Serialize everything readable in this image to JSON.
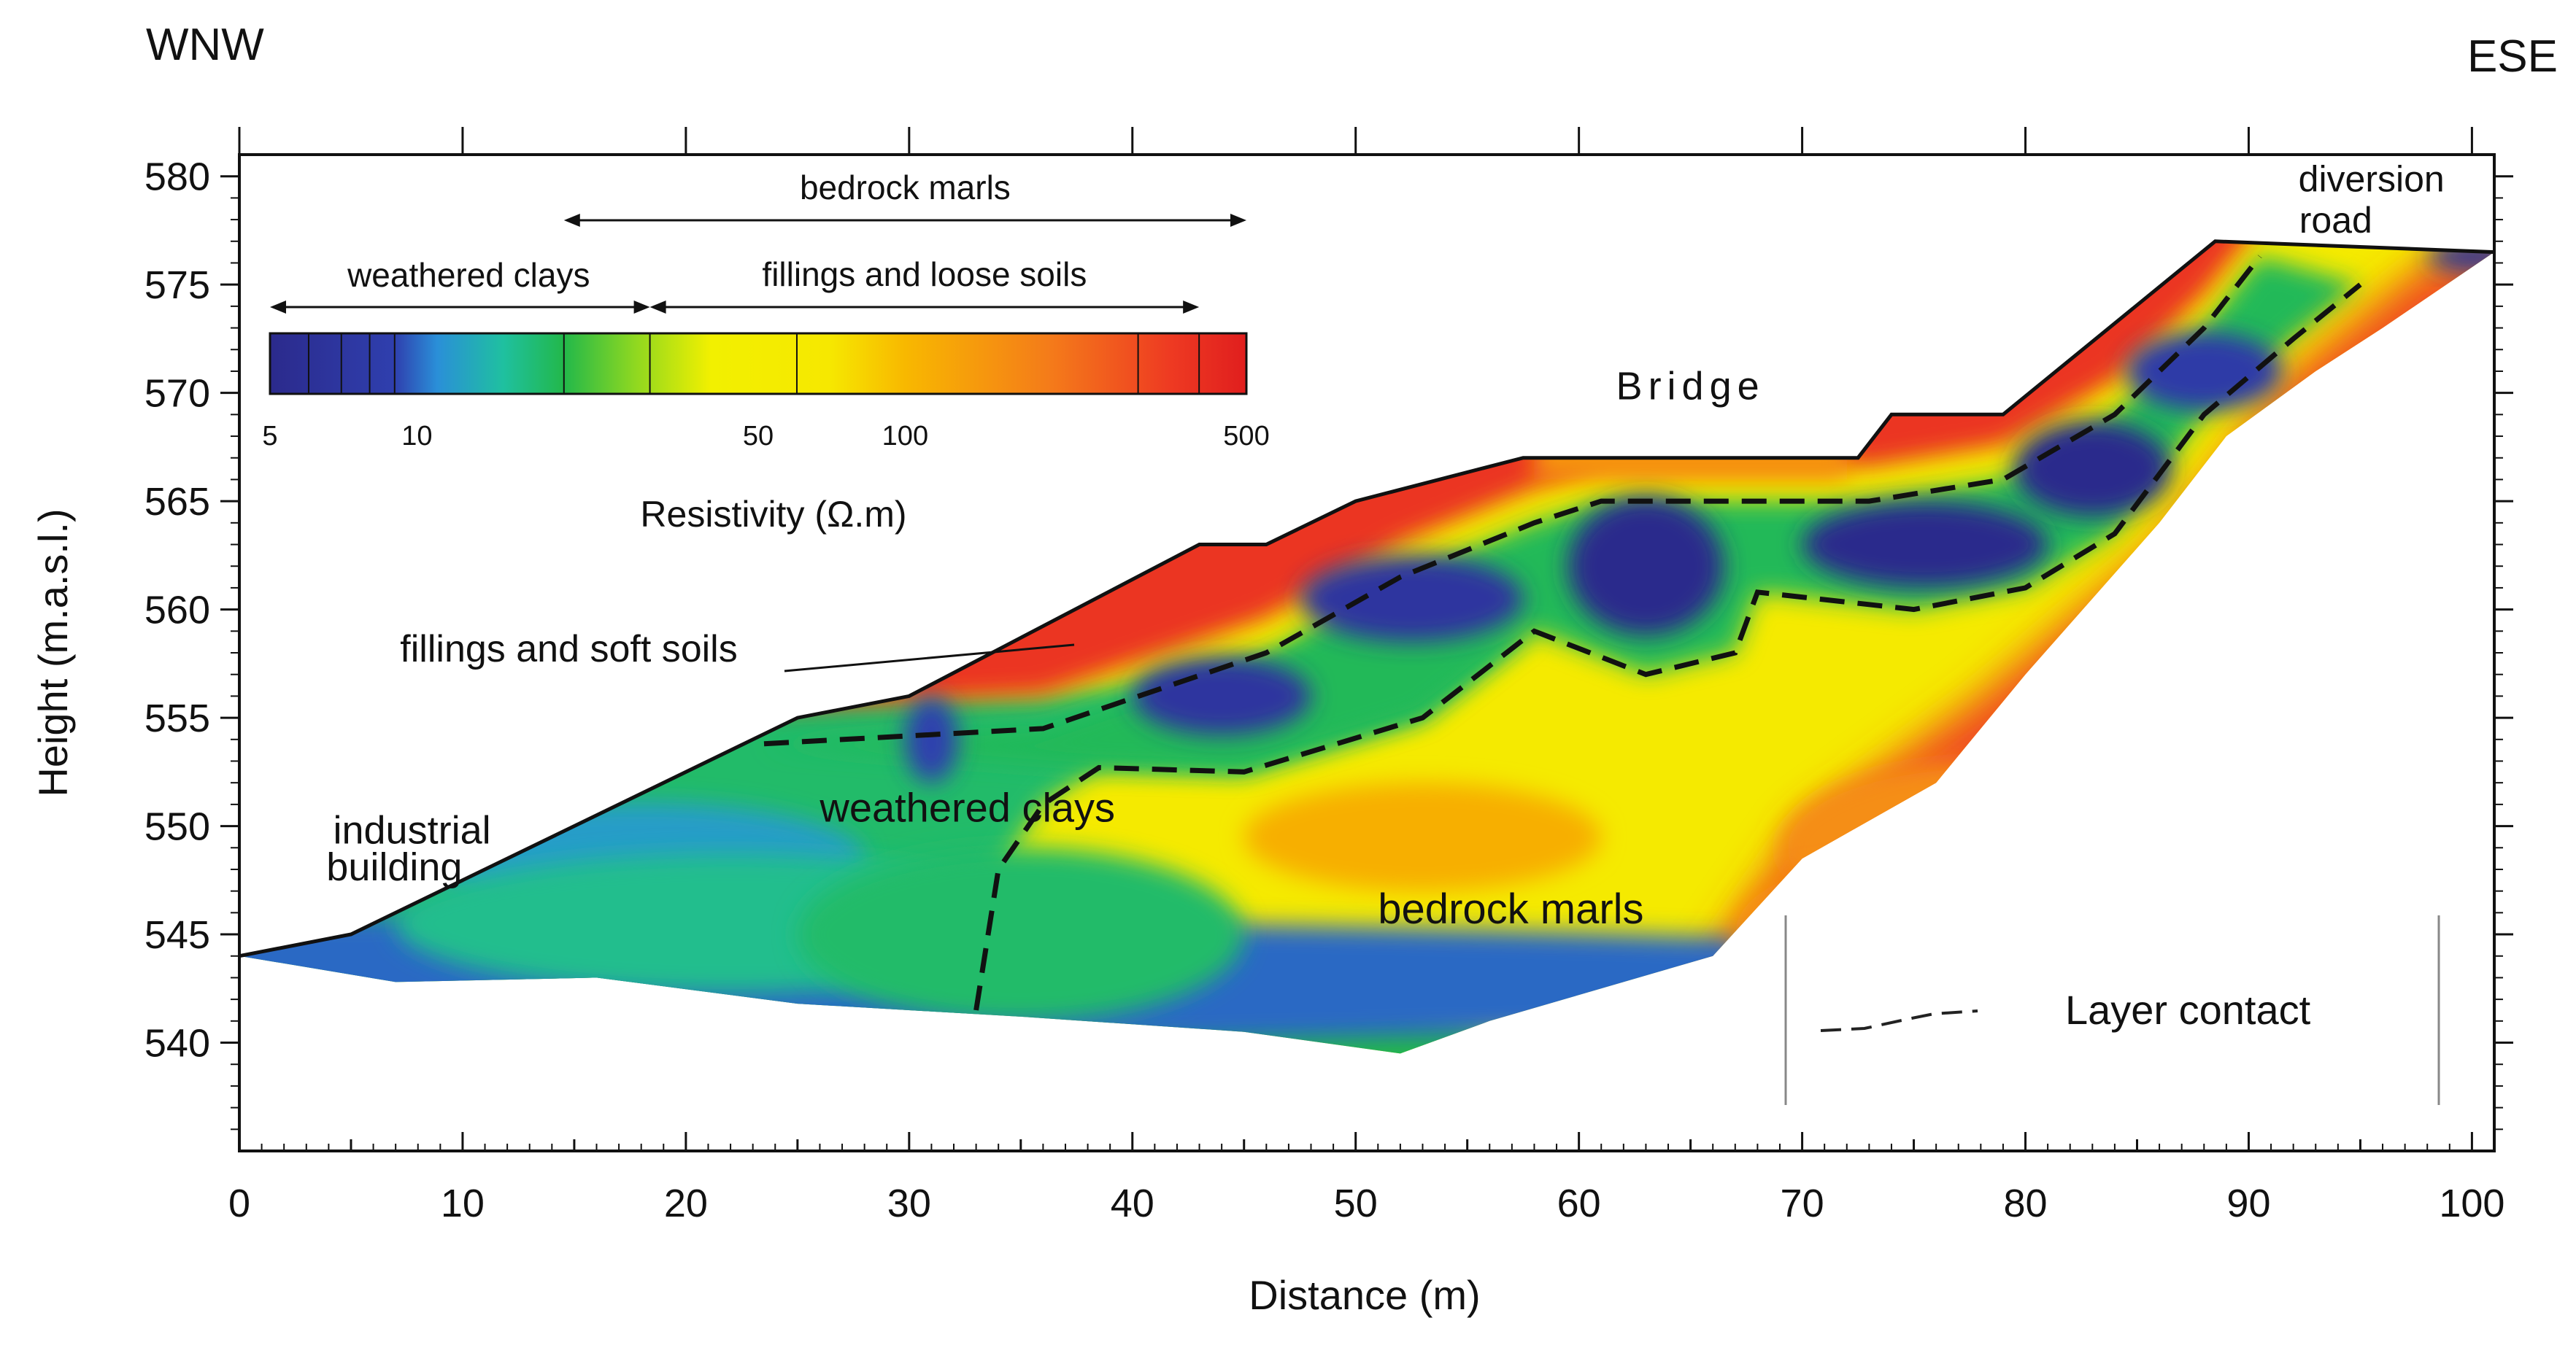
{
  "chart_data": {
    "type": "heatmap",
    "title": "",
    "orientation_left": "WNW",
    "orientation_right": "ESE",
    "xlabel": "Distance (m)",
    "ylabel": "Height (m.a.s.l.)",
    "xlim": [
      0,
      101
    ],
    "ylim": [
      535,
      581
    ],
    "x_ticks": [
      0,
      10,
      20,
      30,
      40,
      50,
      60,
      70,
      80,
      90,
      100
    ],
    "y_ticks": [
      540,
      545,
      550,
      555,
      560,
      565,
      570,
      575,
      580
    ],
    "colorbar": {
      "title": "Resistivity (Ω.m)",
      "scale": "log",
      "min": 5,
      "max": 500,
      "tick_values": [
        5,
        10,
        50,
        100,
        500
      ],
      "tick_labels": [
        "5",
        "10",
        "50",
        "100",
        "500"
      ],
      "boundaries": [
        6,
        7,
        8,
        9,
        20,
        30,
        60,
        300,
        400
      ],
      "stops": [
        {
          "value": 5,
          "color": "#2b2a8c"
        },
        {
          "value": 9,
          "color": "#2f3fae"
        },
        {
          "value": 11,
          "color": "#2a8fd8"
        },
        {
          "value": 15,
          "color": "#1fc0a0"
        },
        {
          "value": 20,
          "color": "#22b84a"
        },
        {
          "value": 28,
          "color": "#8fd820"
        },
        {
          "value": 40,
          "color": "#f2f000"
        },
        {
          "value": 70,
          "color": "#f6e800"
        },
        {
          "value": 100,
          "color": "#f8b800"
        },
        {
          "value": 200,
          "color": "#f47a1a"
        },
        {
          "value": 350,
          "color": "#ee3a22"
        },
        {
          "value": 500,
          "color": "#e01e1e"
        }
      ],
      "ranges": [
        {
          "label": "bedrock marls",
          "from": 20,
          "to": 500
        },
        {
          "label": "weathered clays",
          "from": 5,
          "to": 30
        },
        {
          "label": "fillings and loose soils",
          "from": 30,
          "to": 400
        }
      ]
    },
    "surface_profile": [
      {
        "x": 0,
        "y": 544
      },
      {
        "x": 5,
        "y": 545
      },
      {
        "x": 25,
        "y": 555
      },
      {
        "x": 30,
        "y": 556
      },
      {
        "x": 43,
        "y": 563
      },
      {
        "x": 46,
        "y": 563
      },
      {
        "x": 50,
        "y": 565
      },
      {
        "x": 57.5,
        "y": 567
      },
      {
        "x": 72.5,
        "y": 567
      },
      {
        "x": 74,
        "y": 569
      },
      {
        "x": 79,
        "y": 569
      },
      {
        "x": 88.5,
        "y": 577
      },
      {
        "x": 101,
        "y": 576.5
      }
    ],
    "bottom_profile": [
      {
        "x": 101,
        "y": 576.5
      },
      {
        "x": 96,
        "y": 573
      },
      {
        "x": 93,
        "y": 571
      },
      {
        "x": 89,
        "y": 568
      },
      {
        "x": 86,
        "y": 564
      },
      {
        "x": 80,
        "y": 557
      },
      {
        "x": 76,
        "y": 552
      },
      {
        "x": 70,
        "y": 548.5
      },
      {
        "x": 66,
        "y": 544
      },
      {
        "x": 56,
        "y": 541
      },
      {
        "x": 52,
        "y": 539.5
      },
      {
        "x": 45,
        "y": 540.5
      },
      {
        "x": 35,
        "y": 541.2
      },
      {
        "x": 25,
        "y": 541.8
      },
      {
        "x": 16,
        "y": 543
      },
      {
        "x": 7,
        "y": 542.8
      },
      {
        "x": 0,
        "y": 544
      }
    ],
    "layer_contacts": [
      [
        {
          "x": 23.5,
          "y": 553.8
        },
        {
          "x": 36,
          "y": 554.5
        },
        {
          "x": 46,
          "y": 558
        },
        {
          "x": 52,
          "y": 561.5
        },
        {
          "x": 58,
          "y": 564
        },
        {
          "x": 61,
          "y": 565
        },
        {
          "x": 73,
          "y": 565
        },
        {
          "x": 79,
          "y": 566
        },
        {
          "x": 84,
          "y": 569
        },
        {
          "x": 88,
          "y": 573
        },
        {
          "x": 90.5,
          "y": 576.3
        }
      ],
      [
        {
          "x": 33,
          "y": 541.5
        },
        {
          "x": 34,
          "y": 548
        },
        {
          "x": 36,
          "y": 551
        },
        {
          "x": 38.5,
          "y": 552.7
        },
        {
          "x": 45,
          "y": 552.5
        },
        {
          "x": 53,
          "y": 555
        },
        {
          "x": 58,
          "y": 559
        },
        {
          "x": 63,
          "y": 557
        },
        {
          "x": 67,
          "y": 558
        },
        {
          "x": 68,
          "y": 560.8
        },
        {
          "x": 75,
          "y": 560
        },
        {
          "x": 80,
          "y": 561
        },
        {
          "x": 84,
          "y": 563.5
        },
        {
          "x": 88,
          "y": 569
        },
        {
          "x": 92,
          "y": 572.5
        },
        {
          "x": 95,
          "y": 575
        }
      ]
    ],
    "anomalies": [
      {
        "x": 8,
        "y": 542.8,
        "rx": 80,
        "ry": 3,
        "value": 10
      },
      {
        "x": 18,
        "y": 548.5,
        "rx": 10,
        "ry": 2.6,
        "value": 12
      },
      {
        "x": 22,
        "y": 545.5,
        "rx": 15,
        "ry": 3.2,
        "value": 16
      },
      {
        "x": 35,
        "y": 545,
        "rx": 10,
        "ry": 4,
        "value": 18
      },
      {
        "x": 53,
        "y": 549.5,
        "rx": 8,
        "ry": 2.5,
        "value": 110
      },
      {
        "x": 78,
        "y": 549,
        "rx": 9,
        "ry": 4,
        "value": 160
      },
      {
        "x": 72,
        "y": 545,
        "rx": 5,
        "ry": 3,
        "value": 150
      },
      {
        "x": 44,
        "y": 556,
        "rx": 4,
        "ry": 1.8,
        "value": 7
      },
      {
        "x": 52.5,
        "y": 560.5,
        "rx": 5,
        "ry": 2,
        "value": 7
      },
      {
        "x": 63,
        "y": 562,
        "rx": 3.5,
        "ry": 3.2,
        "value": 5
      },
      {
        "x": 75.5,
        "y": 563,
        "rx": 5.5,
        "ry": 2,
        "value": 5
      },
      {
        "x": 83,
        "y": 566.5,
        "rx": 3.5,
        "ry": 2.2,
        "value": 5
      },
      {
        "x": 88,
        "y": 571,
        "rx": 3.5,
        "ry": 1.8,
        "value": 8
      },
      {
        "x": 31,
        "y": 554,
        "rx": 1.2,
        "ry": 2,
        "value": 9
      },
      {
        "x": 100,
        "y": 576.3,
        "rx": 2,
        "ry": 0.7,
        "value": 6
      }
    ],
    "annotations": [
      {
        "text": "Bridge",
        "x": 65,
        "y": 569.7
      },
      {
        "text": "diversion",
        "x": 95.5,
        "y": 579.3
      },
      {
        "text": "road",
        "x": 93.9,
        "y": 577.4
      },
      {
        "text": "industrial",
        "x": 4.2,
        "y": 549.2
      },
      {
        "text": "building",
        "x": 3.9,
        "y": 547.5
      },
      {
        "text": "fillings and soft soils",
        "x": 7.2,
        "y": 557.6
      },
      {
        "text": "weathered clays",
        "x": 26,
        "y": 550.2
      },
      {
        "text": "bedrock marls",
        "x": 51,
        "y": 545.5
      }
    ],
    "legend": {
      "label": "Layer contact",
      "placement": "bottom-right"
    }
  }
}
